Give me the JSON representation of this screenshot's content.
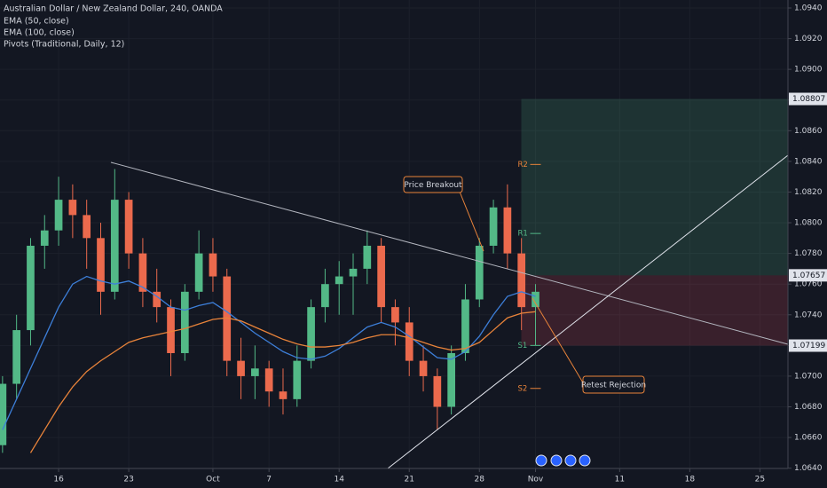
{
  "chart_data": {
    "type": "candlestick",
    "title": "Australian Dollar / New Zealand Dollar, 240, OANDA",
    "up_color": "#53b987",
    "down_color": "#eb6a4d",
    "x": [
      -4,
      -3,
      -2,
      -1,
      0,
      1,
      2,
      3,
      4,
      5,
      6,
      7,
      8,
      9,
      10,
      11,
      12,
      13,
      14,
      15,
      16,
      17,
      18,
      19,
      20,
      21,
      22,
      23,
      24,
      25,
      26,
      27,
      28,
      29,
      30,
      31,
      32,
      33,
      34
    ],
    "open": [
      1.0655,
      1.0695,
      1.073,
      1.0785,
      1.0795,
      1.0815,
      1.0805,
      1.079,
      1.0755,
      1.0815,
      1.078,
      1.0755,
      1.0745,
      1.0715,
      1.0755,
      1.078,
      1.0765,
      1.071,
      1.07,
      1.0705,
      1.069,
      1.0685,
      1.071,
      1.0745,
      1.076,
      1.0765,
      1.077,
      1.0785,
      1.0745,
      1.0735,
      1.071,
      1.07,
      1.068,
      1.0715,
      1.075,
      1.0785,
      1.081,
      1.078,
      1.0745
    ],
    "high": [
      1.07,
      1.074,
      1.079,
      1.0805,
      1.083,
      1.0825,
      1.0815,
      1.08,
      1.0835,
      1.082,
      1.079,
      1.077,
      1.075,
      1.076,
      1.0795,
      1.079,
      1.077,
      1.0725,
      1.072,
      1.071,
      1.0705,
      1.072,
      1.075,
      1.077,
      1.0775,
      1.078,
      1.0795,
      1.079,
      1.075,
      1.0745,
      1.072,
      1.0705,
      1.072,
      1.076,
      1.079,
      1.0815,
      1.0825,
      1.079,
      1.076
    ],
    "low": [
      1.065,
      1.0685,
      1.072,
      1.077,
      1.0785,
      1.079,
      1.077,
      1.074,
      1.075,
      1.077,
      1.0745,
      1.0735,
      1.07,
      1.071,
      1.075,
      1.0755,
      1.07,
      1.0685,
      1.0685,
      1.068,
      1.0675,
      1.068,
      1.0705,
      1.0735,
      1.074,
      1.074,
      1.076,
      1.0735,
      1.072,
      1.07,
      1.069,
      1.0665,
      1.0675,
      1.071,
      1.0745,
      1.078,
      1.077,
      1.073,
      1.072
    ],
    "close": [
      1.0695,
      1.073,
      1.0785,
      1.0795,
      1.0815,
      1.0805,
      1.079,
      1.0755,
      1.0815,
      1.078,
      1.0755,
      1.0745,
      1.0715,
      1.0755,
      1.078,
      1.0765,
      1.071,
      1.07,
      1.0705,
      1.069,
      1.0685,
      1.071,
      1.0745,
      1.076,
      1.0765,
      1.077,
      1.0785,
      1.0745,
      1.0735,
      1.071,
      1.07,
      1.068,
      1.0715,
      1.075,
      1.0785,
      1.081,
      1.078,
      1.0745,
      1.0755
    ],
    "series": [
      {
        "name": "EMA (50, close)",
        "color": "#3d7fd9",
        "values": [
          1.0665,
          1.0685,
          1.0705,
          1.0725,
          1.0745,
          1.076,
          1.0765,
          1.0762,
          1.076,
          1.0762,
          1.0758,
          1.0752,
          1.0745,
          1.0743,
          1.0746,
          1.0748,
          1.0742,
          1.0735,
          1.0728,
          1.0722,
          1.0716,
          1.0712,
          1.0711,
          1.0713,
          1.0718,
          1.0725,
          1.0732,
          1.0735,
          1.0732,
          1.0726,
          1.0719,
          1.0712,
          1.0711,
          1.0716,
          1.0726,
          1.074,
          1.0752,
          1.0755,
          1.0752
        ]
      },
      {
        "name": "EMA (100, close)",
        "color": "#e8833a",
        "values": [
          null,
          null,
          1.065,
          1.0665,
          1.068,
          1.0693,
          1.0703,
          1.071,
          1.0716,
          1.0722,
          1.0725,
          1.0727,
          1.0729,
          1.0731,
          1.0734,
          1.0737,
          1.0738,
          1.0736,
          1.0732,
          1.0728,
          1.0724,
          1.0721,
          1.0719,
          1.0719,
          1.072,
          1.0722,
          1.0725,
          1.0727,
          1.0727,
          1.0725,
          1.0722,
          1.0719,
          1.0717,
          1.0718,
          1.0722,
          1.073,
          1.0738,
          1.0741,
          1.0742
        ]
      }
    ],
    "legend_extra": "Pivots (Traditional, Daily, 12)",
    "pivots": [
      {
        "label": "R2",
        "value": 1.0838,
        "color": "#e8833a"
      },
      {
        "label": "R1",
        "value": 1.0793,
        "color": "#53b987"
      },
      {
        "label": "S1",
        "value": 1.072,
        "color": "#53b987"
      },
      {
        "label": "S2",
        "value": 1.0692,
        "color": "#e8833a"
      }
    ],
    "price_labels": [
      {
        "value": 1.08807,
        "label": "1.08807"
      },
      {
        "value": 1.07657,
        "label": "1.07657"
      },
      {
        "value": 1.07199,
        "label": "1.07199"
      }
    ],
    "annotations": [
      "Price Breakout",
      "Retest Rejection"
    ],
    "xlim": [
      -4.18,
      52.0
    ],
    "ylim": [
      1.06398,
      1.09452
    ],
    "xticks": [
      {
        "value": 0,
        "label": "16"
      },
      {
        "value": 5,
        "label": "23"
      },
      {
        "value": 11,
        "label": "Oct"
      },
      {
        "value": 15,
        "label": "7"
      },
      {
        "value": 20,
        "label": "14"
      },
      {
        "value": 25,
        "label": "21"
      },
      {
        "value": 30,
        "label": "28"
      },
      {
        "value": 34,
        "label": "Nov"
      },
      {
        "value": 40,
        "label": "11"
      },
      {
        "value": 45,
        "label": "18"
      },
      {
        "value": 50,
        "label": "25"
      }
    ],
    "yticks": [
      {
        "value": 1.064,
        "label": "1.0640"
      },
      {
        "value": 1.066,
        "label": "1.0660"
      },
      {
        "value": 1.068,
        "label": "1.0680"
      },
      {
        "value": 1.07,
        "label": "1.0700"
      },
      {
        "value": 1.072,
        "label": "1.0720"
      },
      {
        "value": 1.074,
        "label": "1.0740"
      },
      {
        "value": 1.076,
        "label": "1.0760"
      },
      {
        "value": 1.078,
        "label": "1.0780"
      },
      {
        "value": 1.08,
        "label": "1.0800"
      },
      {
        "value": 1.082,
        "label": "1.0820"
      },
      {
        "value": 1.084,
        "label": "1.0840"
      },
      {
        "value": 1.086,
        "label": "1.0860"
      },
      {
        "value": 1.088,
        "label": "1.0880"
      },
      {
        "value": 1.09,
        "label": "1.0900"
      },
      {
        "value": 1.092,
        "label": "1.0920"
      },
      {
        "value": 1.094,
        "label": "1.0940"
      }
    ],
    "grid": true
  }
}
